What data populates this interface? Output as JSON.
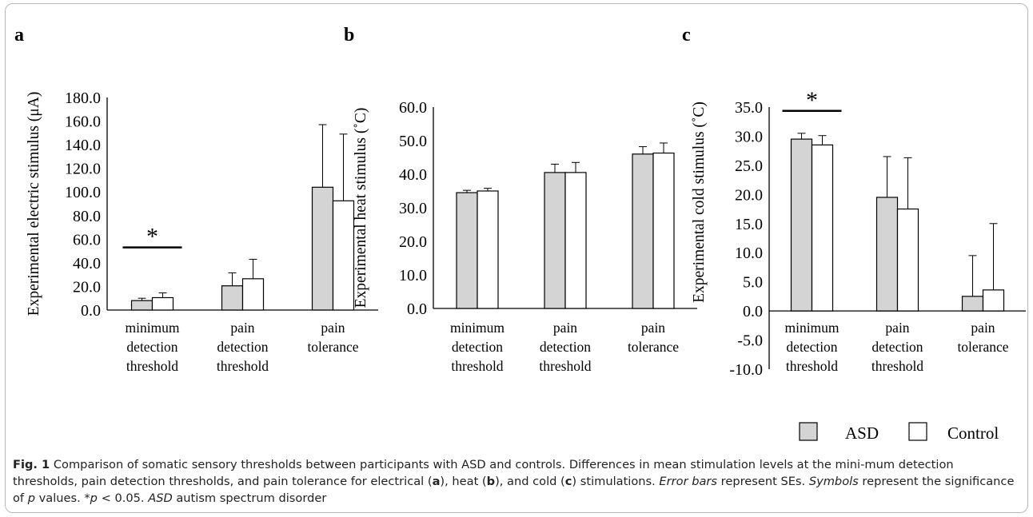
{
  "chart_data": [
    {
      "type": "bar",
      "panel": "a",
      "categories": [
        [
          "minimum",
          "detection",
          "threshold"
        ],
        [
          "pain",
          "detection",
          "threshold"
        ],
        [
          "pain",
          "tolerance"
        ]
      ],
      "ylabel": "Experimental electric stimulus (μA)",
      "ylim": [
        0,
        180
      ],
      "yticks": [
        "0.0",
        "20.0",
        "40.0",
        "60.0",
        "80.0",
        "100.0",
        "120.0",
        "140.0",
        "160.0",
        "180.0"
      ],
      "series": [
        {
          "name": "ASD",
          "values": [
            8,
            20.5,
            104
          ],
          "errors": [
            2,
            11,
            53
          ]
        },
        {
          "name": "Control",
          "values": [
            10.5,
            26.5,
            92.5
          ],
          "errors": [
            4,
            16.5,
            56.5
          ]
        }
      ],
      "significance": [
        {
          "category": 0,
          "symbol": "*"
        }
      ]
    },
    {
      "type": "bar",
      "panel": "b",
      "categories": [
        [
          "minimum",
          "detection",
          "threshold"
        ],
        [
          "pain",
          "detection",
          "threshold"
        ],
        [
          "pain",
          "tolerance"
        ]
      ],
      "ylabel": "Experimental heat stimulus (˚C)",
      "ylim": [
        0,
        60
      ],
      "yticks": [
        "0.0",
        "10.0",
        "20.0",
        "30.0",
        "40.0",
        "50.0",
        "60.0"
      ],
      "series": [
        {
          "name": "ASD",
          "values": [
            34.5,
            40.5,
            46
          ],
          "errors": [
            0.7,
            2.5,
            2.2
          ]
        },
        {
          "name": "Control",
          "values": [
            35,
            40.5,
            46.3
          ],
          "errors": [
            0.8,
            3,
            3
          ]
        }
      ],
      "significance": []
    },
    {
      "type": "bar",
      "panel": "c",
      "categories": [
        [
          "minimum",
          "detection",
          "threshold"
        ],
        [
          "pain",
          "detection",
          "threshold"
        ],
        [
          "pain",
          "tolerance"
        ]
      ],
      "ylabel": "Experimental cold stimulus (˚C)",
      "ylim": [
        -10,
        35
      ],
      "yticks": [
        "-10.0",
        "-5.0",
        "0.0",
        "5.0",
        "10.0",
        "15.0",
        "20.0",
        "25.0",
        "30.0",
        "35.0"
      ],
      "series": [
        {
          "name": "ASD",
          "values": [
            29.5,
            19.5,
            2.5
          ],
          "errors": [
            1,
            7,
            7
          ]
        },
        {
          "name": "Control",
          "values": [
            28.5,
            17.5,
            3.6
          ],
          "errors": [
            1.6,
            8.8,
            11.4
          ]
        }
      ],
      "significance": [
        {
          "category": 0,
          "symbol": "*"
        }
      ]
    }
  ],
  "legend": [
    {
      "label": "ASD",
      "color": "#d4d4d4"
    },
    {
      "label": "Control",
      "color": "#ffffff"
    }
  ],
  "colors": {
    "asd": "#d4d4d4",
    "control": "#ffffff",
    "stroke": "#000000"
  },
  "caption": {
    "label": "Fig. 1",
    "text_1": "  Comparison of somatic sensory thresholds between participants with ASD and controls. Differences in mean stimulation levels at the mini-mum detection thresholds, pain detection thresholds, and pain tolerance for electrical (",
    "a": "a",
    "text_2": "), heat (",
    "b": "b",
    "text_3": "), and cold (",
    "c": "c",
    "text_4": ") stimulations. ",
    "error_bars": "Error bars",
    "text_5": " represent SEs. ",
    "symbols": "Symbols",
    "text_6": " represent the significance of ",
    "p1": "p",
    "text_7": " values. *",
    "p2": "p",
    "text_8": " < 0.05. ",
    "asd": "ASD",
    "text_9": " autism spectrum disorder"
  }
}
